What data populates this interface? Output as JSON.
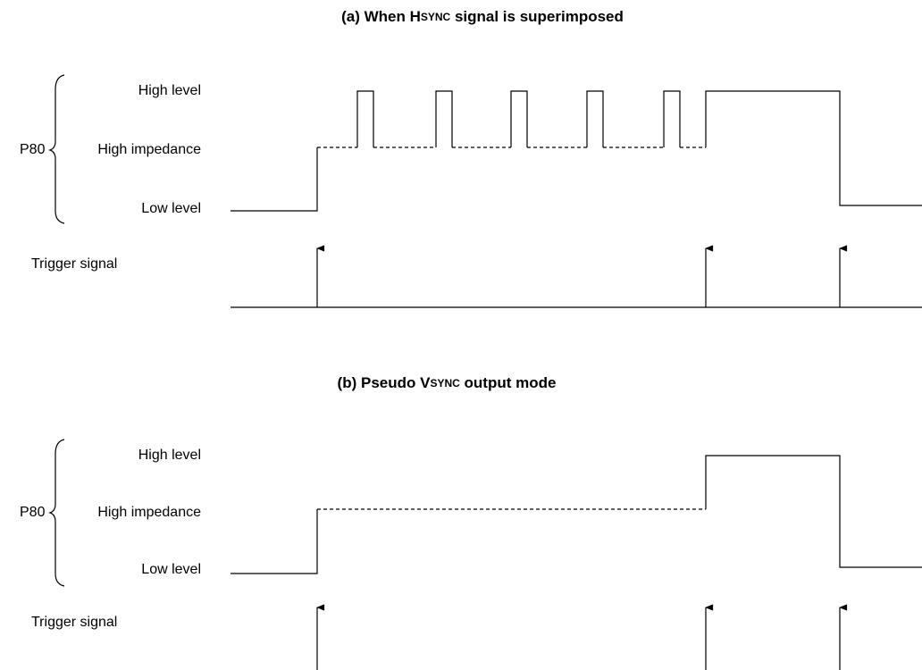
{
  "panels": [
    {
      "title": {
        "prefix": "(a)  When H",
        "smallcaps": "SYNC",
        "suffix": " signal is superimposed"
      },
      "signal_name": "P80",
      "levels": [
        "High level",
        "High impedance",
        "Low level"
      ],
      "trigger_label": "Trigger signal"
    },
    {
      "title": {
        "prefix": "(b)  Pseudo V",
        "smallcaps": "SYNC",
        "suffix": " output mode"
      },
      "signal_name": "P80",
      "levels": [
        "High level",
        "High impedance",
        "Low level"
      ],
      "trigger_label": "Trigger signal"
    }
  ]
}
